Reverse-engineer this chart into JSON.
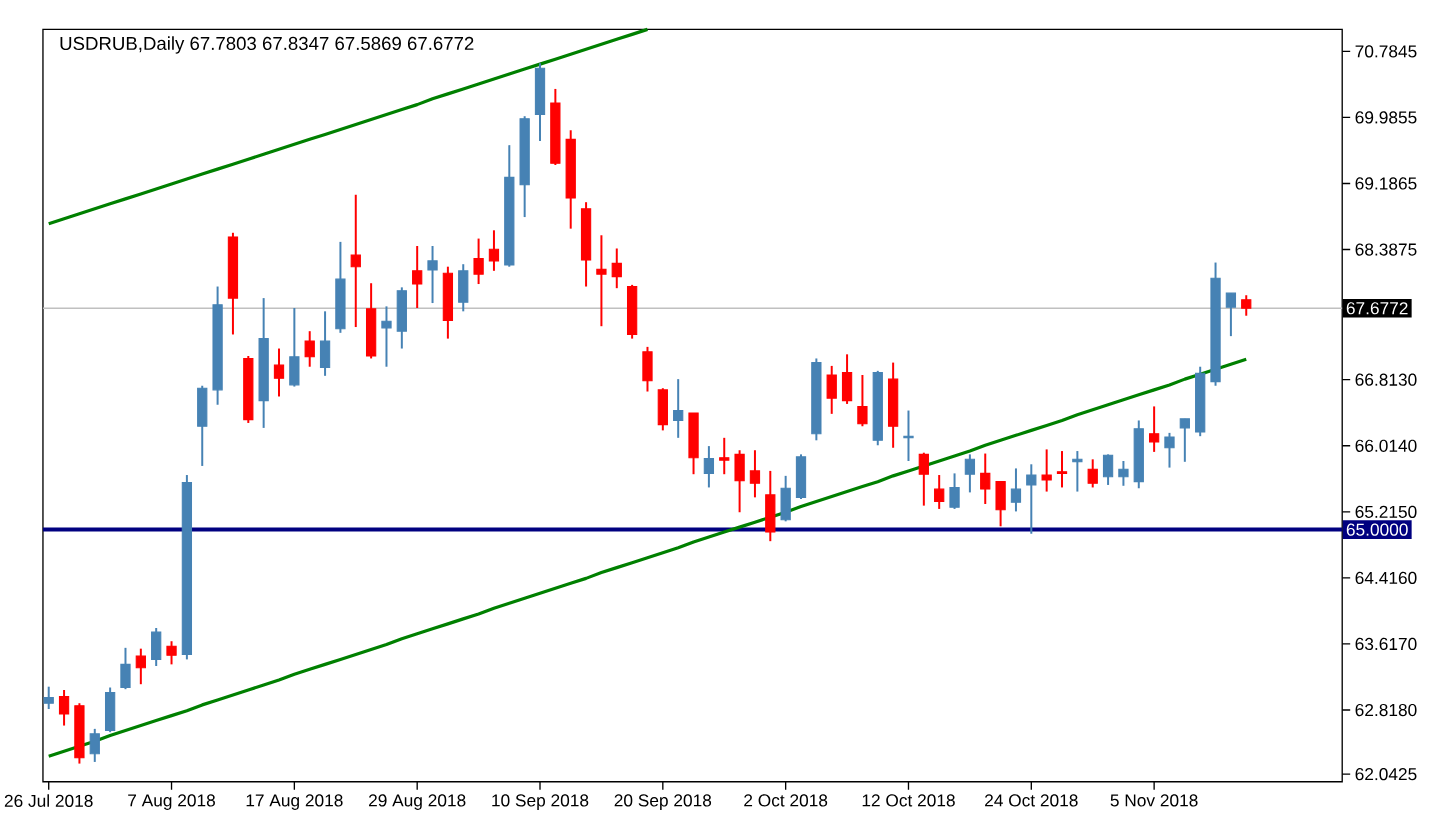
{
  "chart_data": {
    "type": "candlestick",
    "title": "USDRUB,Daily  67.7803 67.8347 67.5869 67.6772",
    "categories": [
      "26 Jul 2018",
      null,
      null,
      null,
      null,
      null,
      null,
      null,
      "7 Aug 2018",
      null,
      null,
      null,
      null,
      null,
      null,
      null,
      "17 Aug 2018",
      null,
      null,
      null,
      null,
      null,
      null,
      null,
      "29 Aug 2018",
      null,
      null,
      null,
      null,
      null,
      null,
      null,
      "10 Sep 2018",
      null,
      null,
      null,
      null,
      null,
      null,
      null,
      "20 Sep 2018",
      null,
      null,
      null,
      null,
      null,
      null,
      null,
      "2 Oct 2018",
      null,
      null,
      null,
      null,
      null,
      null,
      null,
      "12 Oct 2018",
      null,
      null,
      null,
      null,
      null,
      null,
      null,
      "24 Oct 2018",
      null,
      null,
      null,
      null,
      null,
      null,
      null,
      "5 Nov 2018",
      null,
      null,
      null,
      null,
      null,
      null
    ],
    "ohlc": [
      [
        62.9,
        63.1,
        62.83,
        62.97
      ],
      [
        62.98,
        63.06,
        62.63,
        62.77
      ],
      [
        62.87,
        62.9,
        62.17,
        62.24
      ],
      [
        62.29,
        62.59,
        62.19,
        62.53
      ],
      [
        62.57,
        63.09,
        62.55,
        63.03
      ],
      [
        63.09,
        63.57,
        63.07,
        63.37
      ],
      [
        63.47,
        63.56,
        63.13,
        63.33
      ],
      [
        63.43,
        63.81,
        63.35,
        63.76
      ],
      [
        63.59,
        63.65,
        63.37,
        63.48
      ],
      [
        63.49,
        65.66,
        63.43,
        65.57
      ],
      [
        66.25,
        66.74,
        65.77,
        66.71
      ],
      [
        66.69,
        67.94,
        66.51,
        67.72
      ],
      [
        68.54,
        68.59,
        67.36,
        67.8
      ],
      [
        67.07,
        67.1,
        66.29,
        66.33
      ],
      [
        66.56,
        67.8,
        66.23,
        67.31
      ],
      [
        66.99,
        67.19,
        66.61,
        66.83
      ],
      [
        66.75,
        67.68,
        66.73,
        67.09
      ],
      [
        67.28,
        67.4,
        66.97,
        67.09
      ],
      [
        66.96,
        67.64,
        66.86,
        67.28
      ],
      [
        67.43,
        68.48,
        67.38,
        68.03
      ],
      [
        68.32,
        69.05,
        67.45,
        68.18
      ],
      [
        67.67,
        67.98,
        67.07,
        67.1
      ],
      [
        67.44,
        67.7,
        66.97,
        67.52
      ],
      [
        67.4,
        67.93,
        67.19,
        67.89
      ],
      [
        68.13,
        68.43,
        67.68,
        67.97
      ],
      [
        68.14,
        68.43,
        67.74,
        68.25
      ],
      [
        68.1,
        68.18,
        67.31,
        67.53
      ],
      [
        67.75,
        68.21,
        67.64,
        68.13
      ],
      [
        68.28,
        68.52,
        67.97,
        68.09
      ],
      [
        68.39,
        68.62,
        68.13,
        68.25
      ],
      [
        68.2,
        69.65,
        68.18,
        69.26
      ],
      [
        69.17,
        70.0,
        68.78,
        69.97
      ],
      [
        70.02,
        70.64,
        69.7,
        70.58
      ],
      [
        70.16,
        70.33,
        69.41,
        69.43
      ],
      [
        69.72,
        69.83,
        68.64,
        69.01
      ],
      [
        68.88,
        68.96,
        67.94,
        68.26
      ],
      [
        68.15,
        68.56,
        67.46,
        68.09
      ],
      [
        68.22,
        68.4,
        67.92,
        68.06
      ],
      [
        67.94,
        67.96,
        67.31,
        67.36
      ],
      [
        67.15,
        67.21,
        66.67,
        66.8
      ],
      [
        66.69,
        66.71,
        66.2,
        66.27
      ],
      [
        66.32,
        66.82,
        66.11,
        66.44
      ],
      [
        66.41,
        66.41,
        65.67,
        65.87
      ],
      [
        65.68,
        66.01,
        65.51,
        65.86
      ],
      [
        65.87,
        66.11,
        65.67,
        65.84
      ],
      [
        65.91,
        65.96,
        65.21,
        65.59
      ],
      [
        65.71,
        65.96,
        65.39,
        65.56
      ],
      [
        65.42,
        65.71,
        64.86,
        64.97
      ],
      [
        65.12,
        65.65,
        65.1,
        65.5
      ],
      [
        65.39,
        65.91,
        65.37,
        65.88
      ],
      [
        66.16,
        67.07,
        66.08,
        67.02
      ],
      [
        66.87,
        66.98,
        66.4,
        66.59
      ],
      [
        66.9,
        67.12,
        66.52,
        66.56
      ],
      [
        66.49,
        66.87,
        66.25,
        66.28
      ],
      [
        66.08,
        66.92,
        66.02,
        66.9
      ],
      [
        66.82,
        67.02,
        65.99,
        66.25
      ],
      [
        66.11,
        66.44,
        65.83,
        66.13
      ],
      [
        65.91,
        65.93,
        65.29,
        65.67
      ],
      [
        65.49,
        65.66,
        65.25,
        65.34
      ],
      [
        65.27,
        65.68,
        65.25,
        65.51
      ],
      [
        65.67,
        65.91,
        65.45,
        65.85
      ],
      [
        65.68,
        65.92,
        65.31,
        65.49
      ],
      [
        65.58,
        65.58,
        65.04,
        65.24
      ],
      [
        65.33,
        65.74,
        65.22,
        65.49
      ],
      [
        65.54,
        65.79,
        64.95,
        65.66
      ],
      [
        65.66,
        65.97,
        65.46,
        65.6
      ],
      [
        65.7,
        65.95,
        65.51,
        65.68
      ],
      [
        65.82,
        65.95,
        65.46,
        65.85
      ],
      [
        65.73,
        65.85,
        65.51,
        65.56
      ],
      [
        65.64,
        65.91,
        65.54,
        65.9
      ],
      [
        65.64,
        65.83,
        65.53,
        65.73
      ],
      [
        65.58,
        66.32,
        65.5,
        66.22
      ],
      [
        66.16,
        66.49,
        65.94,
        66.06
      ],
      [
        65.99,
        66.17,
        65.75,
        66.12
      ],
      [
        66.23,
        66.34,
        65.82,
        66.34
      ],
      [
        66.18,
        66.97,
        66.13,
        66.89
      ],
      [
        66.79,
        68.23,
        66.74,
        68.04
      ],
      [
        67.69,
        67.86,
        67.34,
        67.86
      ],
      [
        67.7803,
        67.8347,
        67.5869,
        67.6772
      ]
    ],
    "colors": [
      "#4682b4",
      "#ff0000",
      "#ff0000",
      "#4682b4",
      "#4682b4",
      "#4682b4",
      "#ff0000",
      "#4682b4",
      "#ff0000",
      "#4682b4",
      "#4682b4",
      "#4682b4",
      "#ff0000",
      "#ff0000",
      "#4682b4",
      "#ff0000",
      "#4682b4",
      "#ff0000",
      "#4682b4",
      "#4682b4",
      "#ff0000",
      "#ff0000",
      "#4682b4",
      "#4682b4",
      "#ff0000",
      "#4682b4",
      "#ff0000",
      "#4682b4",
      "#ff0000",
      "#ff0000",
      "#4682b4",
      "#4682b4",
      "#4682b4",
      "#ff0000",
      "#ff0000",
      "#ff0000",
      "#ff0000",
      "#ff0000",
      "#ff0000",
      "#ff0000",
      "#ff0000",
      "#4682b4",
      "#ff0000",
      "#4682b4",
      "#ff0000",
      "#ff0000",
      "#ff0000",
      "#ff0000",
      "#4682b4",
      "#4682b4",
      "#4682b4",
      "#ff0000",
      "#ff0000",
      "#ff0000",
      "#4682b4",
      "#ff0000",
      "#4682b4",
      "#ff0000",
      "#ff0000",
      "#4682b4",
      "#4682b4",
      "#ff0000",
      "#ff0000",
      "#4682b4",
      "#4682b4",
      "#ff0000",
      "#ff0000",
      "#4682b4",
      "#ff0000",
      "#4682b4",
      "#4682b4",
      "#4682b4",
      "#ff0000",
      "#4682b4",
      "#4682b4",
      "#4682b4",
      "#4682b4",
      "#4682b4",
      "#ff0000"
    ],
    "series": [
      {
        "type": "line",
        "color": "#008000",
        "values": [
          68.7,
          68.76,
          68.82,
          68.88,
          68.94,
          69.0,
          69.06,
          69.12,
          69.18,
          69.24,
          69.3,
          69.36,
          69.42,
          69.48,
          69.54,
          69.6,
          69.66,
          69.72,
          69.78,
          69.84,
          69.9,
          69.96,
          70.02,
          70.08,
          70.14,
          70.21,
          70.27,
          70.33,
          70.39,
          70.45,
          70.51,
          70.57,
          70.63,
          70.69,
          70.75,
          70.81,
          70.87,
          70.93,
          70.99,
          71.05,
          null,
          null,
          null,
          null,
          null,
          null,
          null,
          null,
          null,
          null,
          null,
          null,
          null,
          null,
          null,
          null,
          null,
          null,
          null,
          null,
          null,
          null,
          null,
          null,
          null,
          null,
          null,
          null,
          null,
          null,
          null,
          null,
          null,
          null,
          null,
          null,
          null,
          null,
          null
        ]
      },
      {
        "type": "line",
        "color": "#008000",
        "values": [
          62.26,
          62.32,
          62.38,
          62.44,
          62.51,
          62.57,
          62.63,
          62.69,
          62.75,
          62.81,
          62.88,
          62.94,
          63.0,
          63.06,
          63.12,
          63.18,
          63.25,
          63.31,
          63.37,
          63.43,
          63.49,
          63.55,
          63.61,
          63.68,
          63.74,
          63.8,
          63.86,
          63.92,
          63.98,
          64.05,
          64.11,
          64.17,
          64.23,
          64.29,
          64.35,
          64.41,
          64.48,
          64.54,
          64.6,
          64.66,
          64.72,
          64.78,
          64.85,
          64.91,
          64.97,
          65.03,
          65.09,
          65.15,
          65.21,
          65.28,
          65.34,
          65.4,
          65.46,
          65.52,
          65.58,
          65.65,
          65.71,
          65.77,
          65.83,
          65.89,
          65.95,
          66.02,
          66.08,
          66.14,
          66.2,
          66.26,
          66.32,
          66.39,
          66.45,
          66.51,
          66.57,
          66.63,
          66.69,
          66.75,
          66.82,
          66.88,
          66.94,
          67.0,
          67.06
        ]
      }
    ],
    "ref_lines": [
      {
        "axis": "y",
        "value": 67.6772,
        "label": "67.6772",
        "color": "#c0c0c0"
      },
      {
        "axis": "y",
        "value": 65,
        "label": "65.0000",
        "color": "#000080"
      }
    ],
    "ylim": [
      61.95,
      71.05
    ],
    "yticks": [
      {
        "value": 70.7845,
        "label": "70.7845"
      },
      {
        "value": 69.9855,
        "label": "69.9855"
      },
      {
        "value": 69.1865,
        "label": "69.1865"
      },
      {
        "value": 68.3875,
        "label": "68.3875"
      },
      {
        "value": 66.813,
        "label": "66.8130"
      },
      {
        "value": 66.014,
        "label": "66.0140"
      },
      {
        "value": 65.215,
        "label": "65.2150"
      },
      {
        "value": 64.416,
        "label": "64.4160"
      },
      {
        "value": 63.617,
        "label": "63.6170"
      },
      {
        "value": 62.818,
        "label": "62.8180"
      },
      {
        "value": 62.0425,
        "label": "62.0425"
      }
    ],
    "grid": false
  }
}
